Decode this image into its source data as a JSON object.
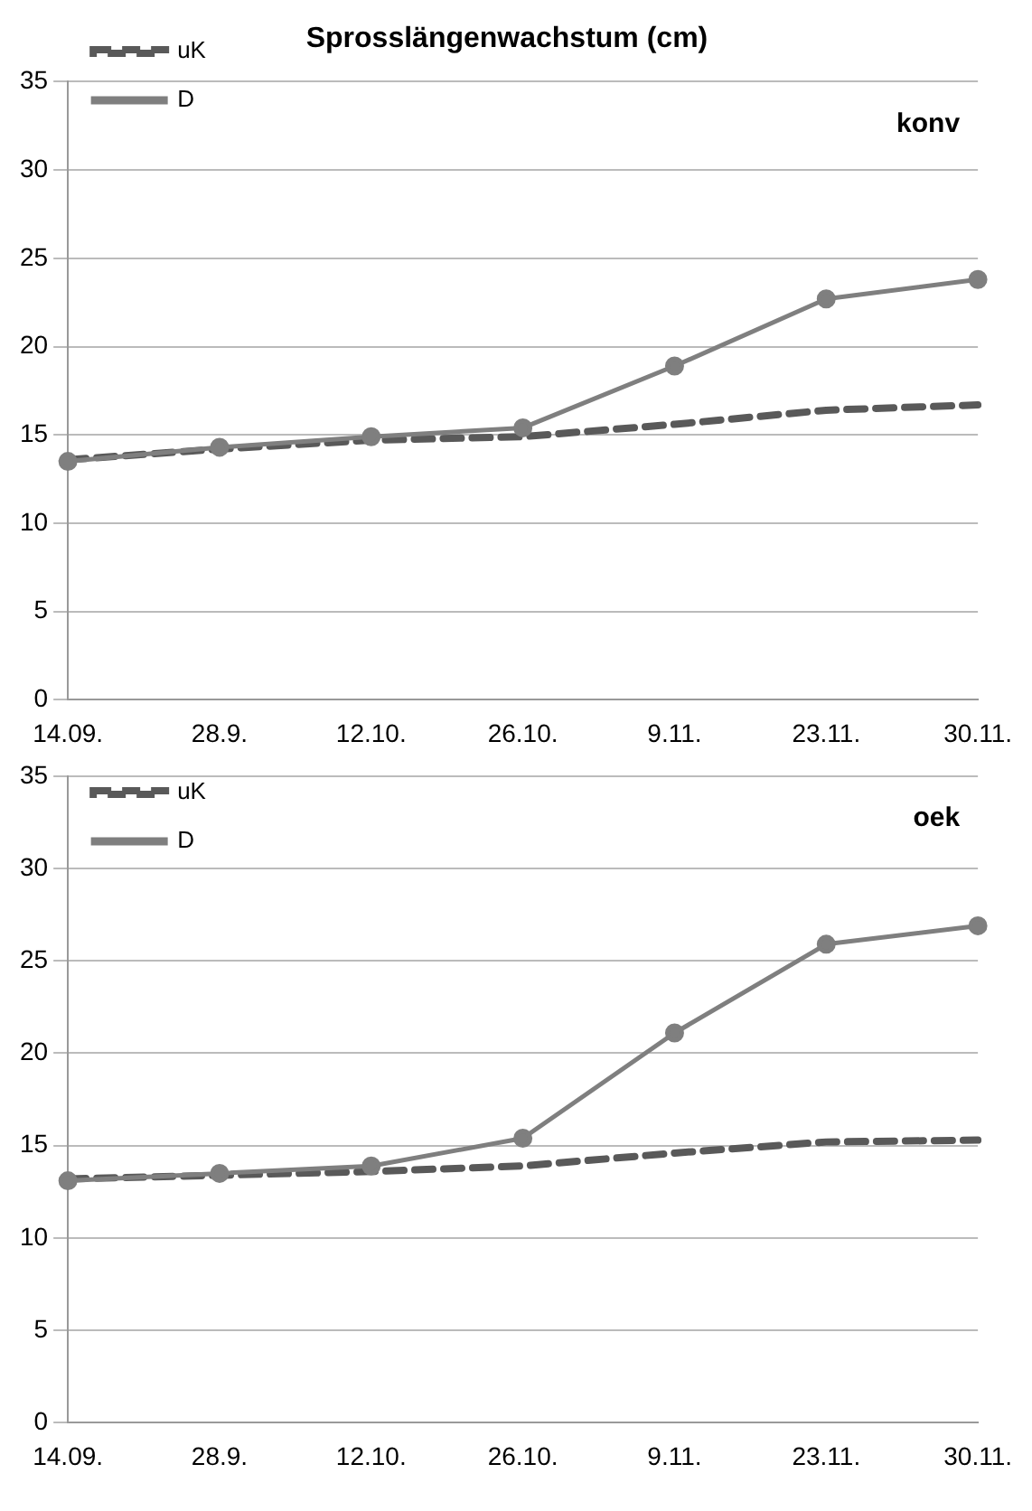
{
  "chart_data": [
    {
      "type": "line",
      "title": "Sprosslängenwachstum (cm)",
      "annotations": [
        "konv"
      ],
      "categories": [
        "14.09.",
        "28.9.",
        "12.10.",
        "26.10.",
        "9.11.",
        "23.11.",
        "30.11."
      ],
      "series": [
        {
          "name": "uK",
          "color": "#595959",
          "line_style": "dashed",
          "marker": "none",
          "values": [
            13.6,
            14.2,
            14.7,
            14.9,
            15.6,
            16.4,
            16.7
          ]
        },
        {
          "name": "D",
          "color": "#7f7f7f",
          "line_style": "solid",
          "marker": "circle",
          "values": [
            13.5,
            14.3,
            14.9,
            15.4,
            18.9,
            22.7,
            23.8
          ]
        }
      ],
      "ylim": [
        0,
        35
      ],
      "yticks": [
        0,
        5,
        10,
        15,
        20,
        25,
        30,
        35
      ],
      "grid": "y",
      "legend": "top left"
    },
    {
      "type": "line",
      "annotations": [
        "oek"
      ],
      "categories": [
        "14.09.",
        "28.9.",
        "12.10.",
        "26.10.",
        "9.11.",
        "23.11.",
        "30.11."
      ],
      "series": [
        {
          "name": "uK",
          "color": "#595959",
          "line_style": "dashed",
          "marker": "none",
          "values": [
            13.2,
            13.4,
            13.6,
            13.9,
            14.6,
            15.2,
            15.3
          ]
        },
        {
          "name": "D",
          "color": "#7f7f7f",
          "line_style": "solid",
          "marker": "circle",
          "values": [
            13.1,
            13.5,
            13.9,
            15.4,
            21.1,
            25.9,
            26.9
          ]
        }
      ],
      "ylim": [
        0,
        35
      ],
      "yticks": [
        0,
        5,
        10,
        15,
        20,
        25,
        30,
        35
      ],
      "grid": "y",
      "legend": "top left"
    }
  ]
}
